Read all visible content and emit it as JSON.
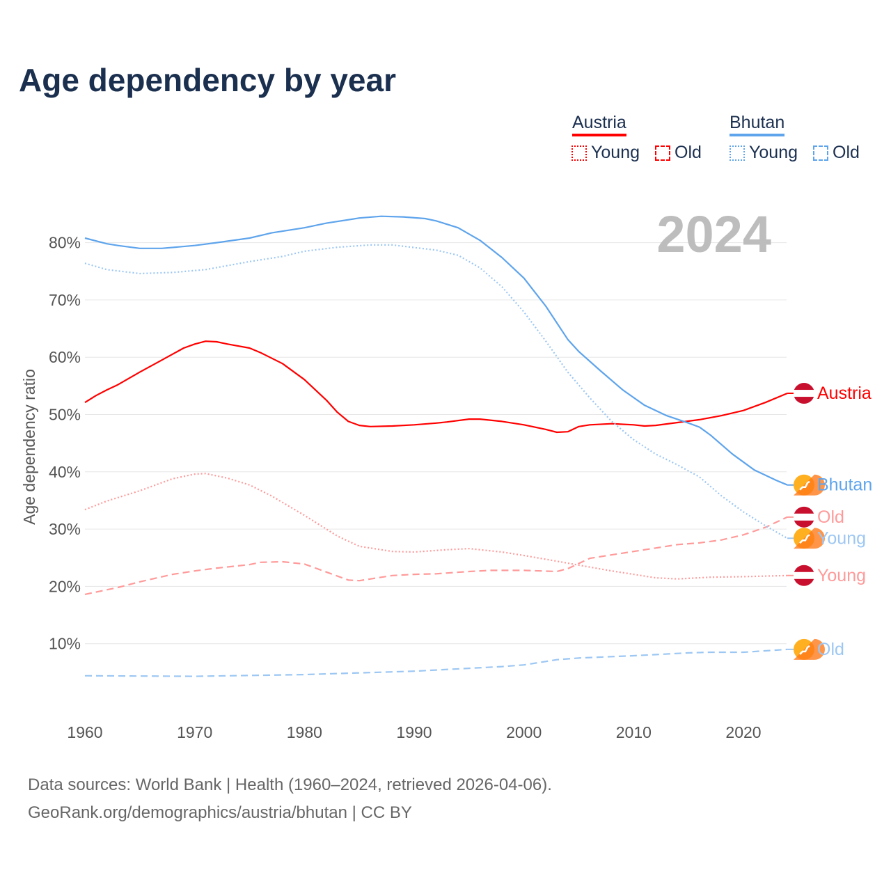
{
  "title": "Age dependency by year",
  "legend": {
    "countries": [
      {
        "name": "Austria",
        "color": "#ff0000",
        "young_label": "Young",
        "old_label": "Old"
      },
      {
        "name": "Bhutan",
        "color": "#5ea4ec",
        "young_label": "Young",
        "old_label": "Old"
      }
    ]
  },
  "year_watermark": "2024",
  "source": {
    "line1": "Data sources: World Bank | Health (1960–2024, retrieved 2026-04-06).",
    "line2": "GeoRank.org/demographics/austria/bhutan | CC BY"
  },
  "chart_data": {
    "type": "line",
    "title": "Age dependency by year",
    "xlabel": "",
    "ylabel": "Age dependency ratio",
    "xlim": [
      1960,
      2024
    ],
    "ylim": [
      0,
      85
    ],
    "x_ticks": [
      1960,
      1970,
      1980,
      1990,
      2000,
      2010,
      2020
    ],
    "y_ticks": [
      10,
      20,
      30,
      40,
      50,
      60,
      70,
      80
    ],
    "y_tick_labels": [
      "10%",
      "20%",
      "30%",
      "40%",
      "50%",
      "60%",
      "70%",
      "80%"
    ],
    "grid": true,
    "legend_position": "top-right",
    "series": [
      {
        "name": "Austria",
        "end_label": "Austria",
        "country": "austria",
        "style": "solid",
        "color": "#ff0000",
        "points": [
          [
            1960,
            52.1
          ],
          [
            1961,
            53.3
          ],
          [
            1962,
            54.3
          ],
          [
            1963,
            55.2
          ],
          [
            1965,
            57.4
          ],
          [
            1967,
            59.5
          ],
          [
            1969,
            61.6
          ],
          [
            1970,
            62.3
          ],
          [
            1971,
            62.8
          ],
          [
            1972,
            62.7
          ],
          [
            1973,
            62.3
          ],
          [
            1975,
            61.6
          ],
          [
            1976,
            60.8
          ],
          [
            1978,
            58.9
          ],
          [
            1980,
            56.1
          ],
          [
            1982,
            52.5
          ],
          [
            1983,
            50.4
          ],
          [
            1984,
            48.8
          ],
          [
            1985,
            48.1
          ],
          [
            1986,
            47.9
          ],
          [
            1988,
            48.0
          ],
          [
            1990,
            48.2
          ],
          [
            1992,
            48.5
          ],
          [
            1993,
            48.7
          ],
          [
            1995,
            49.2
          ],
          [
            1996,
            49.2
          ],
          [
            1998,
            48.8
          ],
          [
            2000,
            48.2
          ],
          [
            2002,
            47.4
          ],
          [
            2003,
            46.9
          ],
          [
            2004,
            47.0
          ],
          [
            2005,
            47.9
          ],
          [
            2006,
            48.2
          ],
          [
            2008,
            48.4
          ],
          [
            2010,
            48.2
          ],
          [
            2011,
            48.0
          ],
          [
            2012,
            48.1
          ],
          [
            2014,
            48.6
          ],
          [
            2016,
            49.1
          ],
          [
            2018,
            49.8
          ],
          [
            2020,
            50.7
          ],
          [
            2022,
            52.1
          ],
          [
            2024,
            53.7
          ]
        ]
      },
      {
        "name": "Bhutan",
        "end_label": "Bhutan",
        "country": "bhutan",
        "style": "solid",
        "color": "#5ea4ec",
        "points": [
          [
            1960,
            80.8
          ],
          [
            1962,
            79.8
          ],
          [
            1963,
            79.5
          ],
          [
            1965,
            79.0
          ],
          [
            1967,
            79.0
          ],
          [
            1970,
            79.5
          ],
          [
            1972,
            80.0
          ],
          [
            1975,
            80.8
          ],
          [
            1977,
            81.7
          ],
          [
            1980,
            82.6
          ],
          [
            1982,
            83.4
          ],
          [
            1985,
            84.3
          ],
          [
            1987,
            84.6
          ],
          [
            1989,
            84.5
          ],
          [
            1991,
            84.2
          ],
          [
            1992,
            83.8
          ],
          [
            1994,
            82.6
          ],
          [
            1996,
            80.4
          ],
          [
            1998,
            77.4
          ],
          [
            2000,
            73.8
          ],
          [
            2002,
            68.9
          ],
          [
            2004,
            63.1
          ],
          [
            2005,
            61.0
          ],
          [
            2007,
            57.6
          ],
          [
            2009,
            54.3
          ],
          [
            2011,
            51.6
          ],
          [
            2013,
            49.8
          ],
          [
            2015,
            48.5
          ],
          [
            2016,
            47.8
          ],
          [
            2017,
            46.4
          ],
          [
            2019,
            43.1
          ],
          [
            2021,
            40.3
          ],
          [
            2023,
            38.5
          ],
          [
            2024,
            37.7
          ]
        ]
      },
      {
        "name": "Austria Old",
        "end_label": "Old",
        "country": "austria",
        "style": "dashed",
        "color": "#ff9a9a",
        "points": [
          [
            1960,
            18.6
          ],
          [
            1963,
            19.8
          ],
          [
            1965,
            20.8
          ],
          [
            1968,
            22.1
          ],
          [
            1970,
            22.7
          ],
          [
            1972,
            23.2
          ],
          [
            1975,
            23.8
          ],
          [
            1976,
            24.2
          ],
          [
            1978,
            24.3
          ],
          [
            1980,
            23.9
          ],
          [
            1982,
            22.5
          ],
          [
            1984,
            21.1
          ],
          [
            1985,
            21.0
          ],
          [
            1988,
            21.9
          ],
          [
            1990,
            22.1
          ],
          [
            1992,
            22.2
          ],
          [
            1995,
            22.6
          ],
          [
            1997,
            22.8
          ],
          [
            2000,
            22.8
          ],
          [
            2003,
            22.6
          ],
          [
            2004,
            23.1
          ],
          [
            2006,
            24.9
          ],
          [
            2008,
            25.5
          ],
          [
            2010,
            26.1
          ],
          [
            2012,
            26.7
          ],
          [
            2014,
            27.3
          ],
          [
            2016,
            27.6
          ],
          [
            2018,
            28.1
          ],
          [
            2020,
            29.0
          ],
          [
            2022,
            30.3
          ],
          [
            2024,
            32.1
          ]
        ]
      },
      {
        "name": "Bhutan Young",
        "end_label": "Young",
        "country": "bhutan",
        "style": "dotted",
        "color": "#9cc7f3",
        "points": [
          [
            1960,
            76.4
          ],
          [
            1962,
            75.3
          ],
          [
            1965,
            74.6
          ],
          [
            1968,
            74.8
          ],
          [
            1971,
            75.3
          ],
          [
            1975,
            76.7
          ],
          [
            1978,
            77.6
          ],
          [
            1980,
            78.5
          ],
          [
            1983,
            79.2
          ],
          [
            1986,
            79.6
          ],
          [
            1988,
            79.6
          ],
          [
            1992,
            78.7
          ],
          [
            1994,
            77.8
          ],
          [
            1996,
            75.6
          ],
          [
            1998,
            72.3
          ],
          [
            2000,
            67.9
          ],
          [
            2002,
            62.8
          ],
          [
            2004,
            57.4
          ],
          [
            2006,
            52.9
          ],
          [
            2008,
            48.8
          ],
          [
            2010,
            45.6
          ],
          [
            2012,
            43.1
          ],
          [
            2014,
            41.2
          ],
          [
            2016,
            39.1
          ],
          [
            2018,
            35.8
          ],
          [
            2020,
            33.0
          ],
          [
            2022,
            30.6
          ],
          [
            2024,
            28.4
          ]
        ]
      },
      {
        "name": "Austria Young",
        "end_label": "Young",
        "country": "austria",
        "style": "dotted",
        "color": "#ff9a9a",
        "points": [
          [
            1960,
            33.4
          ],
          [
            1962,
            34.9
          ],
          [
            1965,
            36.7
          ],
          [
            1968,
            38.8
          ],
          [
            1970,
            39.6
          ],
          [
            1971,
            39.7
          ],
          [
            1973,
            38.9
          ],
          [
            1975,
            37.7
          ],
          [
            1977,
            35.8
          ],
          [
            1980,
            32.4
          ],
          [
            1983,
            28.8
          ],
          [
            1985,
            27.0
          ],
          [
            1988,
            26.1
          ],
          [
            1990,
            26.0
          ],
          [
            1993,
            26.4
          ],
          [
            1995,
            26.6
          ],
          [
            1998,
            26.0
          ],
          [
            2000,
            25.4
          ],
          [
            2003,
            24.4
          ],
          [
            2005,
            23.7
          ],
          [
            2008,
            22.7
          ],
          [
            2010,
            22.1
          ],
          [
            2012,
            21.5
          ],
          [
            2014,
            21.3
          ],
          [
            2017,
            21.6
          ],
          [
            2020,
            21.7
          ],
          [
            2024,
            21.9
          ]
        ]
      },
      {
        "name": "Bhutan Old",
        "end_label": "Old",
        "country": "bhutan",
        "style": "dashed",
        "color": "#9cc7f3",
        "points": [
          [
            1960,
            4.4
          ],
          [
            1970,
            4.3
          ],
          [
            1980,
            4.6
          ],
          [
            1990,
            5.2
          ],
          [
            1998,
            6.0
          ],
          [
            2000,
            6.3
          ],
          [
            2003,
            7.2
          ],
          [
            2005,
            7.5
          ],
          [
            2010,
            7.9
          ],
          [
            2015,
            8.4
          ],
          [
            2017,
            8.5
          ],
          [
            2020,
            8.5
          ],
          [
            2024,
            9.0
          ]
        ]
      }
    ]
  }
}
